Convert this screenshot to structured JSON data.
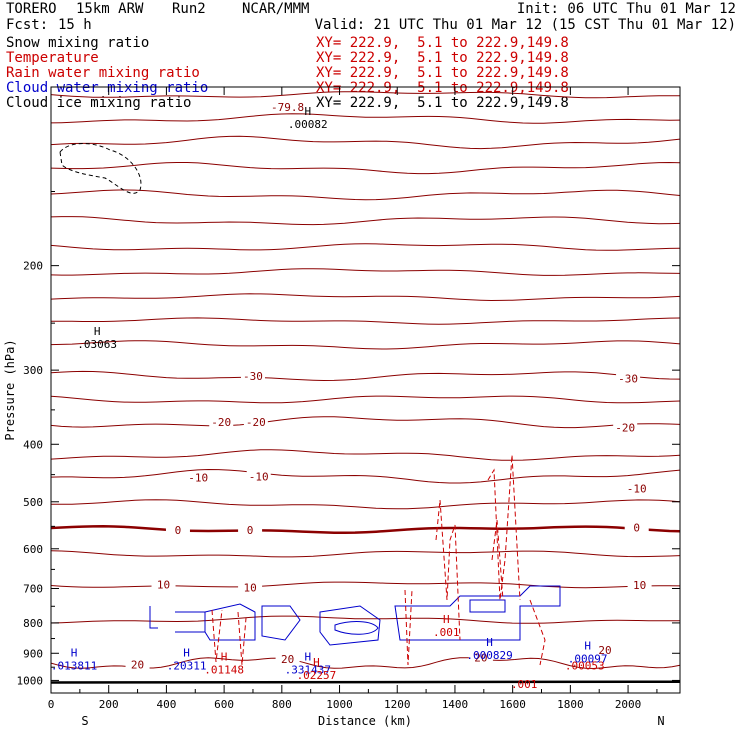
{
  "header": {
    "model": "TORERO",
    "resolution": "15km ARW",
    "run": "Run2",
    "org": "NCAR/MMM",
    "init": "Init: 06 UTC Thu 01 Mar 12",
    "fcst_label": "Fcst:",
    "fcst_value": "15 h",
    "valid": "Valid: 21 UTC Thu 01 Mar 12 (15 CST Thu 01 Mar 12)"
  },
  "legend": [
    {
      "name": "Snow mixing ratio",
      "color": "#000000",
      "xy": "XY= 222.9,  5.1 to 222.9,149.8",
      "xy_color": "#cc0000"
    },
    {
      "name": "Temperature",
      "color": "#cc0000",
      "xy": "XY= 222.9,  5.1 to 222.9,149.8",
      "xy_color": "#cc0000"
    },
    {
      "name": "Rain water mixing ratio",
      "color": "#cc0000",
      "xy": "XY= 222.9,  5.1 to 222.9,149.8",
      "xy_color": "#cc0000"
    },
    {
      "name": "Cloud water mixing ratio",
      "color": "#0000cc",
      "xy": "XY= 222.9,  5.1 to 222.9,149.8",
      "xy_color": "#cc0000"
    },
    {
      "name": "Cloud ice mixing ratio",
      "color": "#000000",
      "xy": "XY= 222.9,  5.1 to 222.9,149.8",
      "xy_color": "#000000"
    }
  ],
  "chart_data": {
    "type": "line",
    "title": "",
    "xlabel": "Distance (km)",
    "ylabel": "Pressure (hPa)",
    "x_ticks": [
      0,
      200,
      400,
      600,
      800,
      1000,
      1200,
      1400,
      1600,
      1800,
      2000
    ],
    "y_ticks": [
      200,
      300,
      400,
      500,
      600,
      700,
      800,
      900,
      1000
    ],
    "xlim": [
      0,
      2180
    ],
    "ylim": [
      1050,
      100
    ],
    "y_scale": "log",
    "endpoint_left": "S",
    "endpoint_right": "N",
    "temperature_label_color": "#8b0000",
    "temperature_labels": [
      {
        "text": "-79.8",
        "x": 820,
        "p": 108
      },
      {
        "text": "-30",
        "x": 700,
        "p": 307
      },
      {
        "text": "-30",
        "x": 2000,
        "p": 310
      },
      {
        "text": "-20",
        "x": 590,
        "p": 367
      },
      {
        "text": "-20",
        "x": 710,
        "p": 367
      },
      {
        "text": "-20",
        "x": 1990,
        "p": 375
      },
      {
        "text": "-10",
        "x": 510,
        "p": 455
      },
      {
        "text": "-10",
        "x": 720,
        "p": 453
      },
      {
        "text": "-10",
        "x": 2030,
        "p": 475
      },
      {
        "text": "0",
        "x": 440,
        "p": 558
      },
      {
        "text": "0",
        "x": 690,
        "p": 558
      },
      {
        "text": "0",
        "x": 2030,
        "p": 552
      },
      {
        "text": "10",
        "x": 390,
        "p": 689
      },
      {
        "text": "10",
        "x": 690,
        "p": 697
      },
      {
        "text": "10",
        "x": 2040,
        "p": 690
      },
      {
        "text": "20",
        "x": 300,
        "p": 940
      },
      {
        "text": "20",
        "x": 820,
        "p": 920
      },
      {
        "text": "20",
        "x": 1490,
        "p": 915
      },
      {
        "text": "20",
        "x": 1920,
        "p": 888
      }
    ],
    "extrema_labels": [
      {
        "mark": "H",
        "value": ".03063",
        "x": 160,
        "p": 270,
        "color": "#000000"
      },
      {
        "mark": "H",
        "value": ".00082",
        "x": 890,
        "p": 115,
        "color": "#000000"
      },
      {
        "mark": "H",
        "value": ".013811",
        "x": 80,
        "p": 940,
        "color": "#0000cc"
      },
      {
        "mark": "H",
        "value": ".20311",
        "x": 470,
        "p": 940,
        "color": "#0000cc"
      },
      {
        "mark": "H",
        "value": ".331437",
        "x": 890,
        "p": 955,
        "color": "#0000cc"
      },
      {
        "mark": "H",
        "value": ".01148",
        "x": 600,
        "p": 955,
        "color": "#cc0000"
      },
      {
        "mark": "H",
        "value": ".02257",
        "x": 920,
        "p": 975,
        "color": "#cc0000"
      },
      {
        "mark": "H",
        "value": ".001",
        "x": 1370,
        "p": 825,
        "color": "#cc0000"
      },
      {
        "mark": "H",
        "value": ".000829",
        "x": 1520,
        "p": 902,
        "color": "#0000cc"
      },
      {
        "mark": "H",
        "value": ".00097",
        "x": 1860,
        "p": 915,
        "color": "#0000cc"
      },
      {
        "mark": "",
        "value": ".00053",
        "x": 1850,
        "p": 940,
        "color": "#cc0000"
      },
      {
        "mark": "",
        "value": ".001",
        "x": 1640,
        "p": 1010,
        "color": "#cc0000"
      }
    ]
  }
}
